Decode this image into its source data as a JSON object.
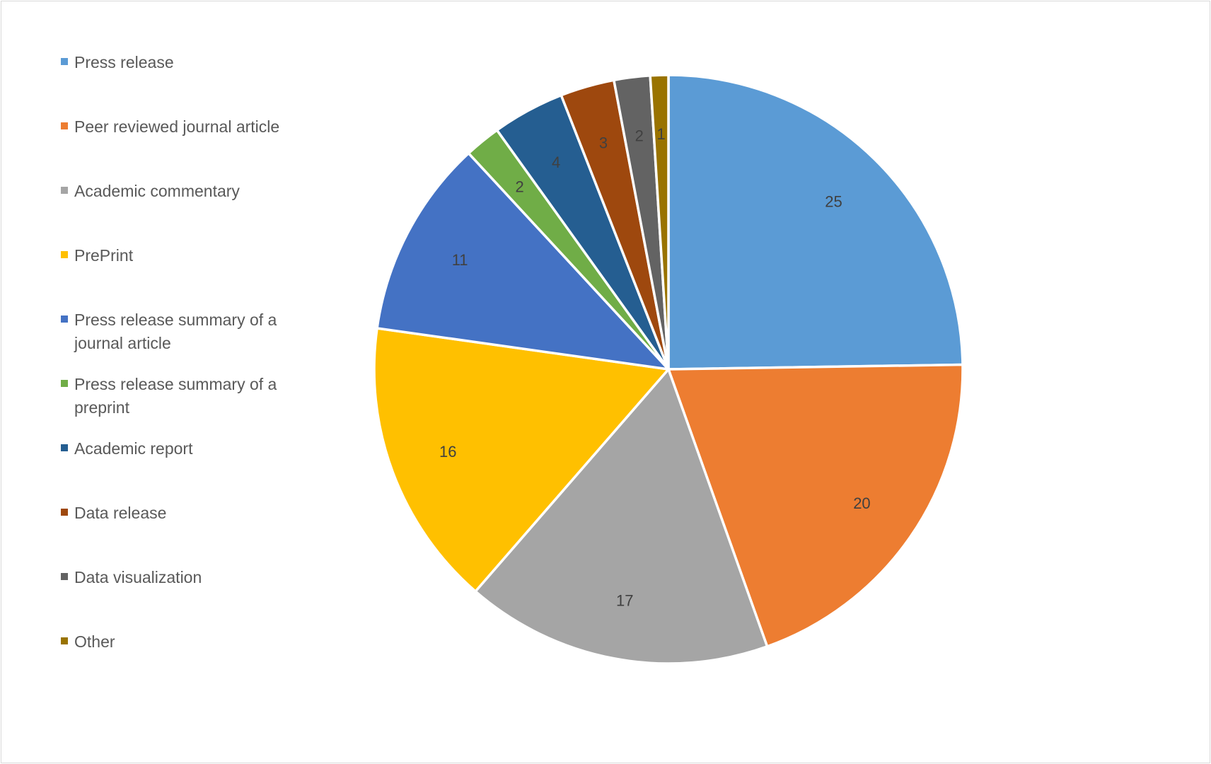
{
  "chart_data": {
    "type": "pie",
    "title": "",
    "legend_position": "left",
    "slices": [
      {
        "label": "Press release",
        "value": 25,
        "color": "#5b9bd5"
      },
      {
        "label": "Peer reviewed journal article",
        "value": 20,
        "color": "#ed7d31"
      },
      {
        "label": "Academic commentary",
        "value": 17,
        "color": "#a5a5a5"
      },
      {
        "label": "PrePrint",
        "value": 16,
        "color": "#ffc000"
      },
      {
        "label": "Press release summary of a journal article",
        "value": 11,
        "color": "#4472c4"
      },
      {
        "label": "Press release summary of a preprint",
        "value": 2,
        "color": "#70ad47"
      },
      {
        "label": "Academic report",
        "value": 4,
        "color": "#255e91"
      },
      {
        "label": "Data release",
        "value": 3,
        "color": "#9e480e"
      },
      {
        "label": "Data visualization",
        "value": 2,
        "color": "#636363"
      },
      {
        "label": "Other",
        "value": 1,
        "color": "#997300"
      }
    ]
  }
}
